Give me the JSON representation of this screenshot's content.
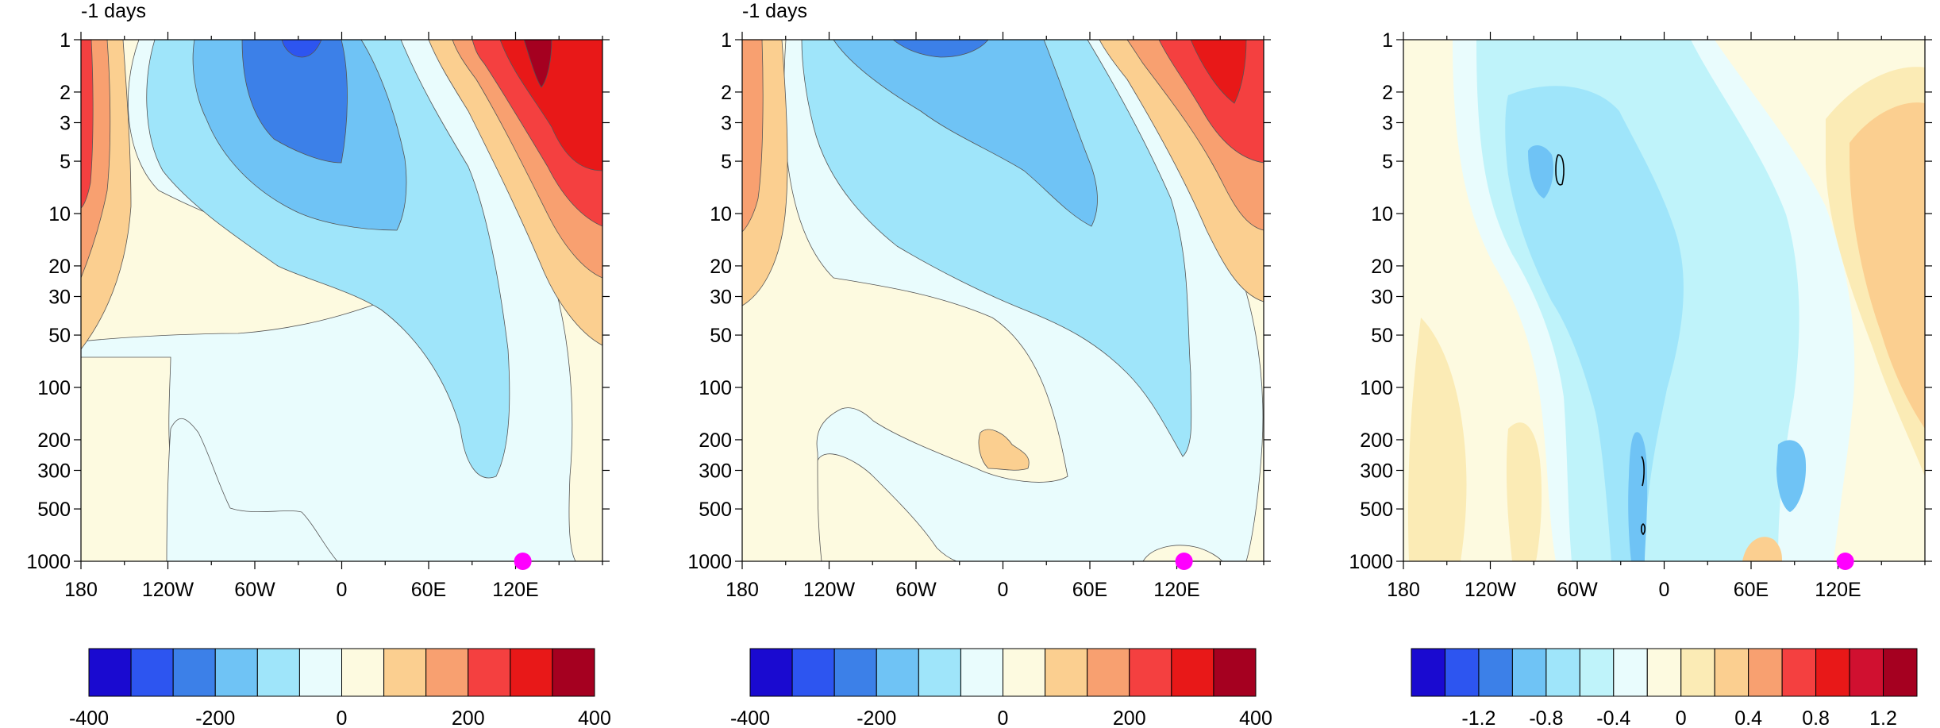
{
  "chart_data": [
    {
      "type": "contour",
      "title": "-1 days",
      "x_ticks": [
        "180",
        "120W",
        "60W",
        "0",
        "60E",
        "120E"
      ],
      "x_tick_values": [
        -180,
        -120,
        -60,
        0,
        60,
        120
      ],
      "xlim": [
        -180,
        180
      ],
      "y_ticks": [
        "1",
        "2",
        "3",
        "5",
        "10",
        "20",
        "30",
        "50",
        "100",
        "200",
        "300",
        "500",
        "1000"
      ],
      "y_tick_values": [
        1,
        2,
        3,
        5,
        10,
        20,
        30,
        50,
        100,
        200,
        300,
        500,
        1000
      ],
      "y_scale": "log",
      "y_reversed": true,
      "ylim": [
        1,
        1000
      ],
      "marker": {
        "lon": 125,
        "pressure": 1000,
        "color": "#ff00ff"
      },
      "colorbar": {
        "colors": [
          "#1a0ad0",
          "#2d55f0",
          "#3c80e8",
          "#6fc3f5",
          "#9fe5fa",
          "#e9fcfd",
          "#fdfae0",
          "#fbcf90",
          "#f8a070",
          "#f44040",
          "#e81818",
          "#a50020"
        ],
        "labels": [
          "-400",
          "-200",
          "0",
          "200",
          "400"
        ],
        "label_values": [
          -400,
          -200,
          0,
          200,
          400
        ]
      }
    },
    {
      "type": "contour",
      "title": "-1 days",
      "x_ticks": [
        "180",
        "120W",
        "60W",
        "0",
        "60E",
        "120E"
      ],
      "x_tick_values": [
        -180,
        -120,
        -60,
        0,
        60,
        120
      ],
      "xlim": [
        -180,
        180
      ],
      "y_ticks": [
        "1",
        "2",
        "3",
        "5",
        "10",
        "20",
        "30",
        "50",
        "100",
        "200",
        "300",
        "500",
        "1000"
      ],
      "y_tick_values": [
        1,
        2,
        3,
        5,
        10,
        20,
        30,
        50,
        100,
        200,
        300,
        500,
        1000
      ],
      "y_scale": "log",
      "y_reversed": true,
      "ylim": [
        1,
        1000
      ],
      "marker": {
        "lon": 125,
        "pressure": 1000,
        "color": "#ff00ff"
      },
      "colorbar": {
        "colors": [
          "#1a0ad0",
          "#2d55f0",
          "#3c80e8",
          "#6fc3f5",
          "#9fe5fa",
          "#e9fcfd",
          "#fdfae0",
          "#fbcf90",
          "#f8a070",
          "#f44040",
          "#e81818",
          "#a50020"
        ],
        "labels": [
          "-400",
          "-200",
          "0",
          "200",
          "400"
        ],
        "label_values": [
          -400,
          -200,
          0,
          200,
          400
        ]
      }
    },
    {
      "type": "contour",
      "title": "",
      "x_ticks": [
        "180",
        "120W",
        "60W",
        "0",
        "60E",
        "120E"
      ],
      "x_tick_values": [
        -180,
        -120,
        -60,
        0,
        60,
        120
      ],
      "xlim": [
        -180,
        180
      ],
      "y_ticks": [
        "1",
        "2",
        "3",
        "5",
        "10",
        "20",
        "30",
        "50",
        "100",
        "200",
        "300",
        "500",
        "1000"
      ],
      "y_tick_values": [
        1,
        2,
        3,
        5,
        10,
        20,
        30,
        50,
        100,
        200,
        300,
        500,
        1000
      ],
      "y_scale": "log",
      "y_reversed": true,
      "ylim": [
        1,
        1000
      ],
      "marker": {
        "lon": 125,
        "pressure": 1000,
        "color": "#ff00ff"
      },
      "colorbar": {
        "colors": [
          "#1a0ad0",
          "#2d55f0",
          "#3c80e8",
          "#6fc3f5",
          "#9fe5fa",
          "#bff3fa",
          "#e9fcfd",
          "#fdfae0",
          "#fbebb5",
          "#fbcf90",
          "#f8a070",
          "#f44040",
          "#e81818",
          "#d01030",
          "#a50020"
        ],
        "labels": [
          "-1.2",
          "-0.8",
          "-0.4",
          "0",
          "0.4",
          "0.8",
          "1.2"
        ],
        "label_values": [
          -1.2,
          -0.8,
          -0.4,
          0,
          0.4,
          0.8,
          1.2
        ]
      }
    }
  ]
}
